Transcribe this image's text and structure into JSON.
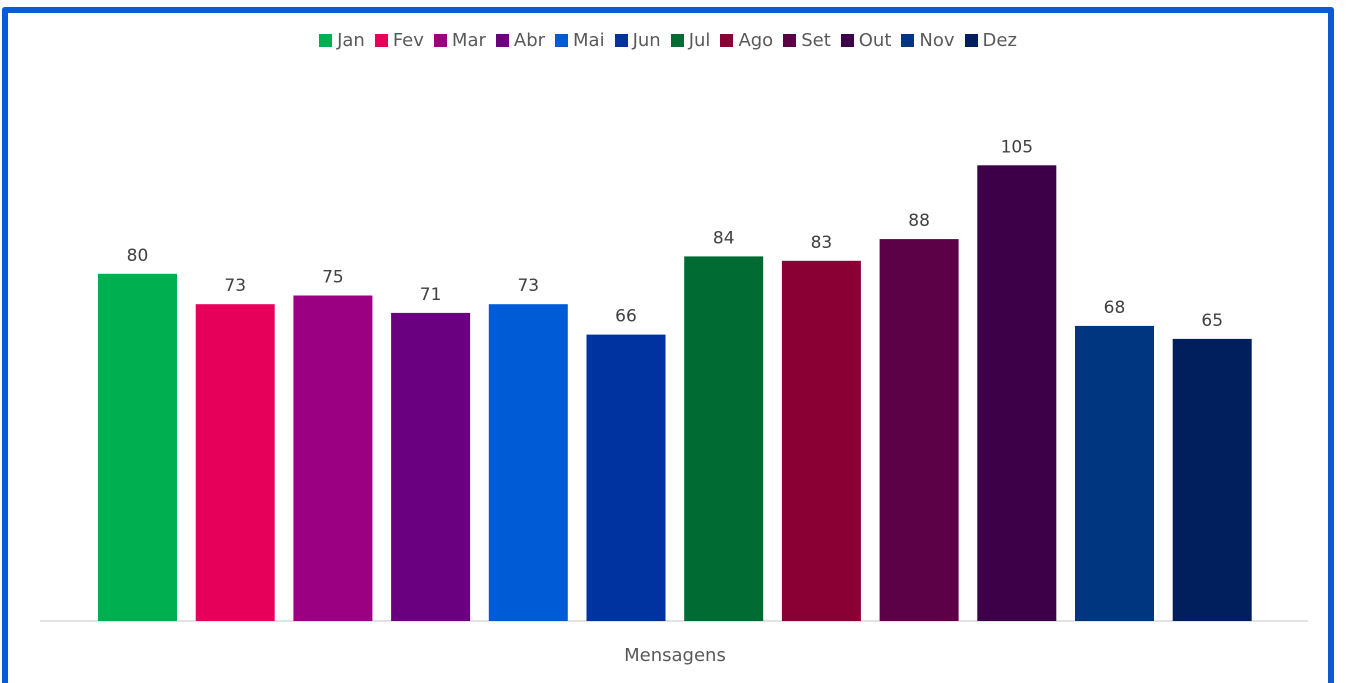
{
  "chart_data": {
    "type": "bar",
    "xlabel": "Mensagens",
    "ylim": [
      0,
      120
    ],
    "legend_position": "top",
    "grid": false,
    "series": [
      {
        "name": "Jan",
        "values": [
          80
        ],
        "color": "#00b050"
      },
      {
        "name": "Fev",
        "values": [
          73
        ],
        "color": "#e6005a"
      },
      {
        "name": "Mar",
        "values": [
          75
        ],
        "color": "#9b0082"
      },
      {
        "name": "Abr",
        "values": [
          71
        ],
        "color": "#6a0080"
      },
      {
        "name": "Mai",
        "values": [
          73
        ],
        "color": "#005bd6"
      },
      {
        "name": "Jun",
        "values": [
          66
        ],
        "color": "#0033a0"
      },
      {
        "name": "Jul",
        "values": [
          84
        ],
        "color": "#006b32"
      },
      {
        "name": "Ago",
        "values": [
          83
        ],
        "color": "#8a0035"
      },
      {
        "name": "Set",
        "values": [
          88
        ],
        "color": "#5c0048"
      },
      {
        "name": "Out",
        "values": [
          105
        ],
        "color": "#3d0048"
      },
      {
        "name": "Nov",
        "values": [
          68
        ],
        "color": "#00357f"
      },
      {
        "name": "Dez",
        "values": [
          65
        ],
        "color": "#001f5c"
      }
    ]
  },
  "colors": {
    "frame_border": "#0a5bd6",
    "axis_line": "#d9d9d9"
  }
}
